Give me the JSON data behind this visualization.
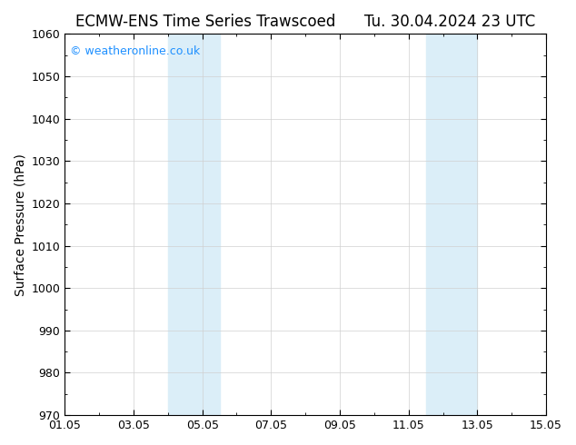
{
  "title": "ECMW-ENS Time Series Trawscoed      Tu. 30.04.2024 23 UTC",
  "ylabel": "Surface Pressure (hPa)",
  "ylim": [
    970,
    1060
  ],
  "ytick_step": 10,
  "xlim_min": 1.0,
  "xlim_max": 15.0,
  "xticks": [
    1.0,
    3.0,
    5.0,
    7.0,
    9.0,
    11.0,
    13.0,
    15.0
  ],
  "xticklabels": [
    "01.05",
    "03.05",
    "05.05",
    "07.05",
    "09.05",
    "11.05",
    "13.05",
    "15.05"
  ],
  "shaded_bands": [
    {
      "xmin": 4.0,
      "xmax": 5.0,
      "color": "#dbeef8"
    },
    {
      "xmin": 5.0,
      "xmax": 5.5,
      "color": "#dbeef8"
    },
    {
      "xmin": 11.5,
      "xmax": 12.0,
      "color": "#dbeef8"
    },
    {
      "xmin": 12.0,
      "xmax": 13.0,
      "color": "#dbeef8"
    }
  ],
  "watermark_text": "© weatheronline.co.uk",
  "watermark_color": "#1e90ff",
  "bg_color": "#ffffff",
  "grid_color": "#d0d0d0",
  "title_fontsize": 12,
  "axis_fontsize": 10,
  "tick_fontsize": 9
}
